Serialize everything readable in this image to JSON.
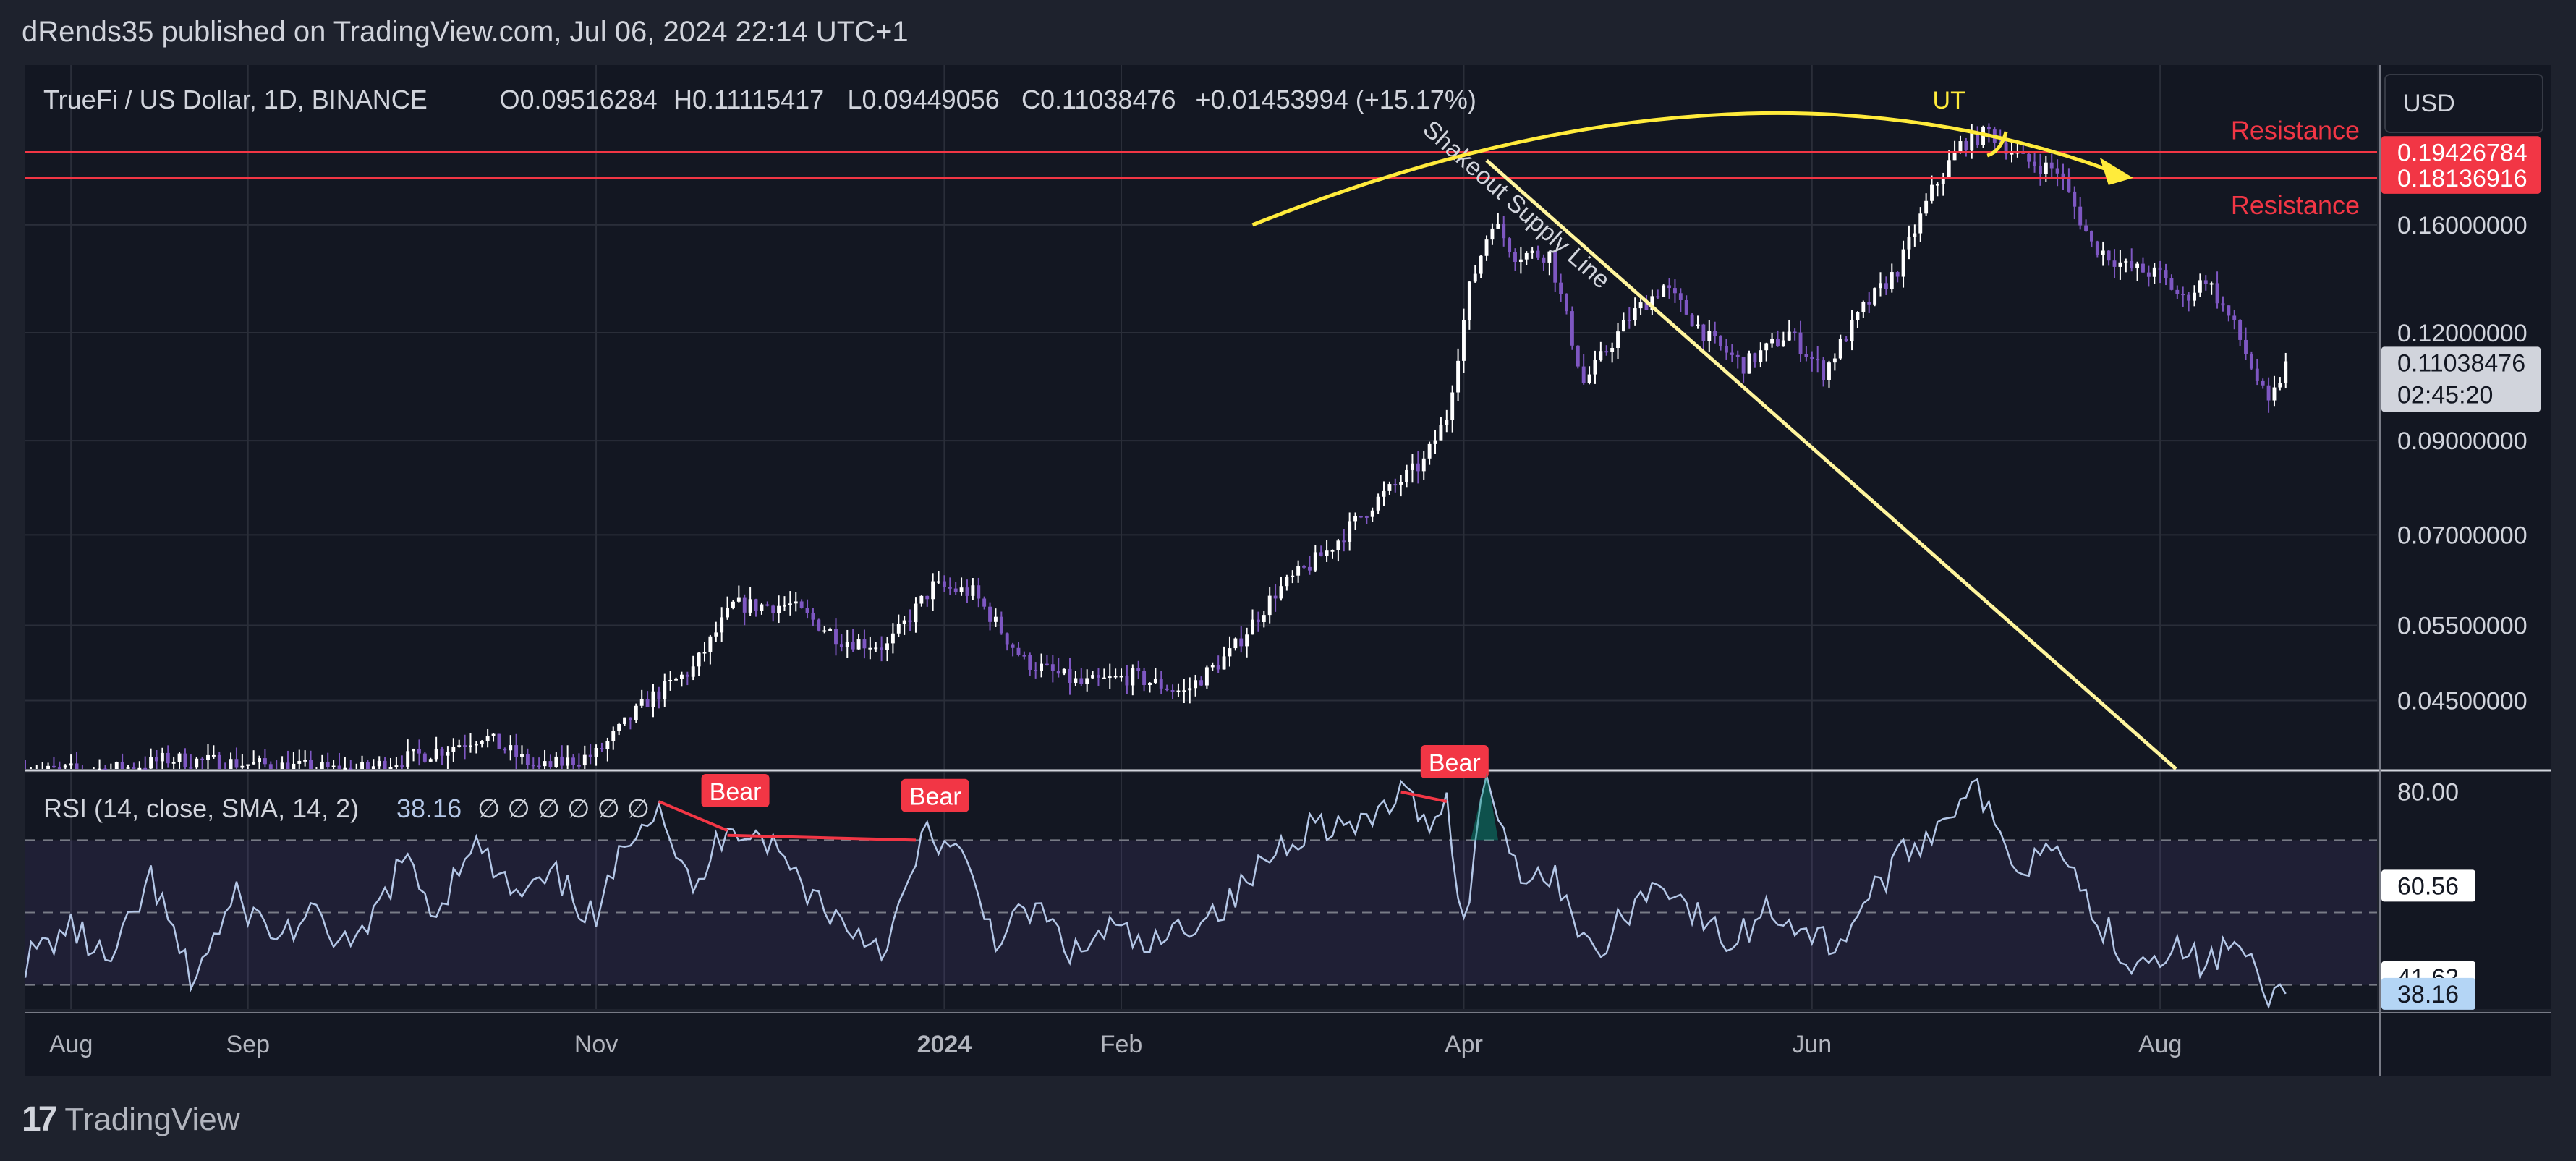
{
  "header": {
    "published_line": "dRends35 published on TradingView.com, Jul 06, 2024 22:14 UTC+1"
  },
  "currency_button": "USD",
  "footer": {
    "logo_text": "TradingView"
  },
  "colors": {
    "background": "#131722",
    "frame": "#1e222d",
    "candle_up": "#ffffff",
    "candle_down": "#7e57c2",
    "resistance": "#f23645",
    "annotation_yellow": "#ffeb3b",
    "supply_line": "#fff59d",
    "rsi_line": "#b4c7e7",
    "rsi_band": "#7e57c2",
    "bear_label": "#f23645"
  },
  "chart_data": [
    {
      "type": "candlestick",
      "symbol_line": {
        "name": "TrueFi / US Dollar, 1D, BINANCE",
        "open": "O0.09516284",
        "high": "H0.11115417",
        "low": "L0.09449056",
        "close": "C0.11038476",
        "change": "+0.01453994 (+15.17%)"
      },
      "y_scale": "log",
      "ylim": [
        0.0375,
        0.245
      ],
      "x_range": [
        "2023-07-24",
        "2024-09-08"
      ],
      "x_tick_labels": [
        {
          "label": "Aug",
          "date": "2023-08-01"
        },
        {
          "label": "Sep",
          "date": "2023-09-01"
        },
        {
          "label": "Nov",
          "date": "2023-11-01"
        },
        {
          "label": "2024",
          "date": "2024-01-01",
          "bold": true
        },
        {
          "label": "Feb",
          "date": "2024-02-01"
        },
        {
          "label": "Apr",
          "date": "2024-04-01"
        },
        {
          "label": "Jun",
          "date": "2024-06-01"
        },
        {
          "label": "Aug",
          "date": "2024-08-01"
        }
      ],
      "y_tick_labels": [
        "0.16000000",
        "0.12000000",
        "0.09000000",
        "0.07000000",
        "0.05500000",
        "0.04500000"
      ],
      "y_tick_values": [
        0.16,
        0.12,
        0.09,
        0.07,
        0.055,
        0.045
      ],
      "price_key_points": [
        [
          "2023-07-24",
          0.0372
        ],
        [
          "2023-08-10",
          0.0375
        ],
        [
          "2023-08-18",
          0.0385
        ],
        [
          "2023-09-20",
          0.0373
        ],
        [
          "2023-10-05",
          0.0395
        ],
        [
          "2023-10-12",
          0.041
        ],
        [
          "2023-10-22",
          0.0375
        ],
        [
          "2023-11-01",
          0.039
        ],
        [
          "2023-11-10",
          0.045
        ],
        [
          "2023-11-18",
          0.049
        ],
        [
          "2023-11-25",
          0.058
        ],
        [
          "2023-12-05",
          0.058
        ],
        [
          "2023-12-14",
          0.053
        ],
        [
          "2023-12-22",
          0.052
        ],
        [
          "2023-12-30",
          0.061
        ],
        [
          "2024-01-06",
          0.06
        ],
        [
          "2024-01-15",
          0.05
        ],
        [
          "2024-01-25",
          0.047
        ],
        [
          "2024-02-03",
          0.048
        ],
        [
          "2024-02-12",
          0.046
        ],
        [
          "2024-02-20",
          0.051
        ],
        [
          "2024-02-28",
          0.06
        ],
        [
          "2024-03-08",
          0.067
        ],
        [
          "2024-03-16",
          0.076
        ],
        [
          "2024-03-25",
          0.085
        ],
        [
          "2024-03-29",
          0.096
        ],
        [
          "2024-04-02",
          0.135
        ],
        [
          "2024-04-06",
          0.162
        ],
        [
          "2024-04-10",
          0.148
        ],
        [
          "2024-04-16",
          0.148
        ],
        [
          "2024-04-22",
          0.105
        ],
        [
          "2024-04-30",
          0.125
        ],
        [
          "2024-05-06",
          0.136
        ],
        [
          "2024-05-14",
          0.118
        ],
        [
          "2024-05-20",
          0.11
        ],
        [
          "2024-05-28",
          0.12
        ],
        [
          "2024-06-03",
          0.108
        ],
        [
          "2024-06-10",
          0.128
        ],
        [
          "2024-06-16",
          0.142
        ],
        [
          "2024-06-22",
          0.175
        ],
        [
          "2024-06-27",
          0.198
        ],
        [
          "2024-07-02",
          0.205
        ],
        [
          "2024-07-08",
          0.19
        ],
        [
          "2024-07-14",
          0.185
        ],
        [
          "2024-07-20",
          0.152
        ],
        [
          "2024-07-26",
          0.143
        ],
        [
          "2024-08-01",
          0.14
        ],
        [
          "2024-08-05",
          0.131
        ],
        [
          "2024-08-09",
          0.139
        ],
        [
          "2024-08-14",
          0.122
        ],
        [
          "2024-08-20",
          0.0985
        ],
        [
          "2024-08-23",
          0.11
        ]
      ],
      "price_labels": [
        {
          "value": 0.19426784,
          "text": "0.19426784",
          "bg": "#f23645"
        },
        {
          "value": 0.18136916,
          "text": "0.18136916",
          "bg": "#f23645"
        },
        {
          "value": 0.11038476,
          "text": "0.11038476",
          "sub": "02:45:20",
          "bg": "#d1d4dc"
        }
      ],
      "horizontal_lines": [
        {
          "value": 0.19426784,
          "label": "Resistance"
        },
        {
          "value": 0.18136916,
          "label": "Resistance"
        }
      ],
      "annotations": {
        "trend_line_label": "Shakeout Supply Line",
        "arc_top_label": "UT"
      }
    },
    {
      "type": "line",
      "indicator_title": "RSI (14, close, SMA, 14, 2)",
      "indicator_value": "38.16",
      "indicator_extra": "∅ ∅ ∅ ∅ ∅ ∅",
      "ylim": [
        35,
        84
      ],
      "y_tick_labels": [
        "80.00"
      ],
      "band": [
        40,
        70
      ],
      "value_labels": [
        {
          "text": "60.56",
          "value": 60.56
        },
        {
          "text": "41.62",
          "value": 41.62
        },
        {
          "text": "38.16",
          "value": 38.16
        }
      ],
      "bear_labels": [
        "Bear",
        "Bear",
        "Bear"
      ],
      "rsi_key_points": [
        [
          "2023-07-24",
          45
        ],
        [
          "2023-08-01",
          52
        ],
        [
          "2023-08-08",
          44
        ],
        [
          "2023-08-15",
          62
        ],
        [
          "2023-08-22",
          41
        ],
        [
          "2023-08-30",
          58
        ],
        [
          "2023-09-06",
          50
        ],
        [
          "2023-09-12",
          54
        ],
        [
          "2023-09-20",
          47
        ],
        [
          "2023-09-28",
          66
        ],
        [
          "2023-10-04",
          55
        ],
        [
          "2023-10-10",
          70
        ],
        [
          "2023-10-18",
          58
        ],
        [
          "2023-10-25",
          62
        ],
        [
          "2023-11-01",
          53
        ],
        [
          "2023-11-07",
          72
        ],
        [
          "2023-11-12",
          78
        ],
        [
          "2023-11-18",
          58
        ],
        [
          "2023-11-24",
          74
        ],
        [
          "2023-12-01",
          70
        ],
        [
          "2023-12-08",
          60
        ],
        [
          "2023-12-15",
          52
        ],
        [
          "2023-12-22",
          48
        ],
        [
          "2023-12-29",
          72
        ],
        [
          "2024-01-04",
          66
        ],
        [
          "2024-01-10",
          50
        ],
        [
          "2024-01-17",
          56
        ],
        [
          "2024-01-24",
          46
        ],
        [
          "2024-01-30",
          52
        ],
        [
          "2024-02-06",
          47
        ],
        [
          "2024-02-13",
          53
        ],
        [
          "2024-02-20",
          57
        ],
        [
          "2024-02-28",
          68
        ],
        [
          "2024-03-06",
          74
        ],
        [
          "2024-03-14",
          72
        ],
        [
          "2024-03-21",
          80
        ],
        [
          "2024-03-25",
          74
        ],
        [
          "2024-03-29",
          78
        ],
        [
          "2024-04-01",
          52
        ],
        [
          "2024-04-05",
          84
        ],
        [
          "2024-04-10",
          65
        ],
        [
          "2024-04-18",
          61
        ],
        [
          "2024-04-24",
          45
        ],
        [
          "2024-04-30",
          56
        ],
        [
          "2024-05-06",
          62
        ],
        [
          "2024-05-12",
          54
        ],
        [
          "2024-05-18",
          48
        ],
        [
          "2024-05-24",
          56
        ],
        [
          "2024-05-30",
          52
        ],
        [
          "2024-06-05",
          48
        ],
        [
          "2024-06-12",
          60
        ],
        [
          "2024-06-18",
          68
        ],
        [
          "2024-06-24",
          74
        ],
        [
          "2024-06-29",
          83
        ],
        [
          "2024-07-03",
          72
        ],
        [
          "2024-07-08",
          64
        ],
        [
          "2024-07-14",
          72
        ],
        [
          "2024-07-20",
          55
        ],
        [
          "2024-07-27",
          45
        ],
        [
          "2024-08-03",
          48
        ],
        [
          "2024-08-09",
          44
        ],
        [
          "2024-08-14",
          49
        ],
        [
          "2024-08-20",
          37
        ],
        [
          "2024-08-23",
          38.16
        ]
      ]
    }
  ]
}
